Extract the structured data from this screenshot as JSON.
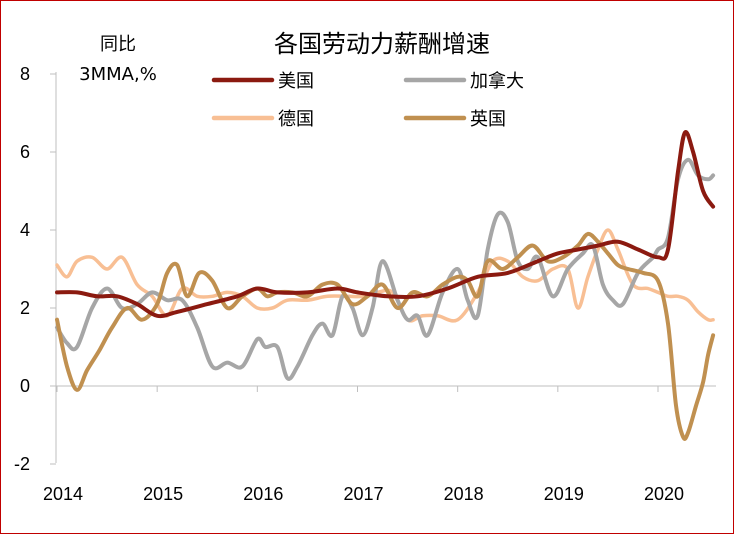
{
  "chart_data": {
    "type": "line",
    "title": "各国劳动力薪酬增速",
    "ylabel_line1": "同比",
    "ylabel_line2": "3MMA,%",
    "ylim": [
      -2,
      8
    ],
    "yticks": [
      "8",
      "6",
      "4",
      "2",
      "0",
      "-2"
    ],
    "xlim": [
      2014,
      2020.55
    ],
    "xticks": [
      "2014",
      "2015",
      "2016",
      "2017",
      "2018",
      "2019",
      "2020"
    ],
    "legend_position": "top",
    "series": [
      {
        "name": "美国",
        "color": "#8b1a10",
        "width": 4,
        "x": [
          2014.0,
          2014.2,
          2014.4,
          2014.6,
          2014.8,
          2015.0,
          2015.2,
          2015.5,
          2015.8,
          2016.0,
          2016.2,
          2016.5,
          2016.8,
          2017.0,
          2017.3,
          2017.6,
          2017.9,
          2018.2,
          2018.5,
          2018.8,
          2019.0,
          2019.2,
          2019.4,
          2019.6,
          2019.8,
          2020.0,
          2020.1,
          2020.2,
          2020.27,
          2020.35,
          2020.45,
          2020.55
        ],
        "y": [
          2.4,
          2.4,
          2.3,
          2.3,
          2.1,
          1.8,
          1.9,
          2.1,
          2.3,
          2.5,
          2.4,
          2.4,
          2.5,
          2.4,
          2.3,
          2.3,
          2.5,
          2.8,
          2.9,
          3.2,
          3.4,
          3.5,
          3.6,
          3.7,
          3.5,
          3.3,
          3.5,
          5.5,
          6.5,
          6.0,
          5.0,
          4.6
        ]
      },
      {
        "name": "加拿大",
        "color": "#a6a6a6",
        "width": 4,
        "x": [
          2014.0,
          2014.1,
          2014.2,
          2014.35,
          2014.5,
          2014.65,
          2014.8,
          2014.95,
          2015.1,
          2015.25,
          2015.4,
          2015.55,
          2015.7,
          2015.85,
          2016.0,
          2016.08,
          2016.2,
          2016.3,
          2016.4,
          2016.55,
          2016.65,
          2016.75,
          2016.85,
          2016.95,
          2017.05,
          2017.15,
          2017.25,
          2017.4,
          2017.5,
          2017.6,
          2017.7,
          2017.85,
          2018.0,
          2018.1,
          2018.2,
          2018.3,
          2018.4,
          2018.5,
          2018.6,
          2018.7,
          2018.8,
          2018.95,
          2019.1,
          2019.25,
          2019.35,
          2019.45,
          2019.55,
          2019.65,
          2019.8,
          2019.95,
          2020.0,
          2020.1,
          2020.2,
          2020.3,
          2020.4,
          2020.5,
          2020.55
        ],
        "y": [
          1.5,
          1.1,
          1.0,
          2.0,
          2.5,
          2.0,
          2.1,
          2.4,
          2.2,
          2.2,
          1.5,
          0.5,
          0.6,
          0.5,
          1.2,
          1.0,
          1.0,
          0.2,
          0.5,
          1.3,
          1.6,
          1.3,
          2.3,
          2.0,
          1.3,
          2.0,
          3.2,
          2.2,
          1.7,
          1.8,
          1.3,
          2.4,
          3.0,
          2.2,
          1.8,
          3.5,
          4.4,
          4.2,
          3.2,
          3.0,
          3.3,
          2.3,
          3.0,
          3.4,
          3.6,
          2.6,
          2.2,
          2.1,
          2.9,
          3.3,
          3.5,
          3.8,
          5.3,
          5.8,
          5.4,
          5.3,
          5.4
        ]
      },
      {
        "name": "德国",
        "color": "#f8bf94",
        "width": 3.5,
        "x": [
          2014.0,
          2014.1,
          2014.2,
          2014.35,
          2014.5,
          2014.65,
          2014.8,
          2014.95,
          2015.1,
          2015.25,
          2015.4,
          2015.55,
          2015.7,
          2015.85,
          2016.0,
          2016.15,
          2016.3,
          2016.5,
          2016.7,
          2016.9,
          2017.05,
          2017.2,
          2017.35,
          2017.5,
          2017.65,
          2017.8,
          2018.0,
          2018.2,
          2018.35,
          2018.5,
          2018.65,
          2018.8,
          2018.95,
          2019.1,
          2019.2,
          2019.3,
          2019.4,
          2019.5,
          2019.6,
          2019.75,
          2019.9,
          2020.0,
          2020.1,
          2020.2,
          2020.3,
          2020.4,
          2020.5,
          2020.55
        ],
        "y": [
          3.1,
          2.8,
          3.2,
          3.3,
          3.0,
          3.3,
          2.6,
          2.3,
          1.8,
          2.5,
          2.3,
          2.3,
          2.4,
          2.3,
          2.0,
          2.0,
          2.2,
          2.2,
          2.3,
          2.3,
          2.3,
          2.4,
          2.4,
          1.7,
          1.8,
          1.8,
          1.7,
          2.4,
          3.2,
          3.2,
          2.8,
          2.7,
          3.0,
          3.0,
          2.0,
          2.8,
          3.5,
          4.0,
          3.5,
          2.6,
          2.5,
          2.4,
          2.3,
          2.3,
          2.2,
          1.9,
          1.7,
          1.7
        ]
      },
      {
        "name": "英国",
        "color": "#c09050",
        "width": 4,
        "x": [
          2014.0,
          2014.1,
          2014.2,
          2014.3,
          2014.42,
          2014.55,
          2014.7,
          2014.85,
          2015.0,
          2015.1,
          2015.2,
          2015.3,
          2015.42,
          2015.55,
          2015.7,
          2015.85,
          2016.0,
          2016.1,
          2016.2,
          2016.35,
          2016.5,
          2016.65,
          2016.8,
          2016.95,
          2017.1,
          2017.25,
          2017.4,
          2017.55,
          2017.7,
          2017.85,
          2018.0,
          2018.1,
          2018.2,
          2018.3,
          2018.45,
          2018.6,
          2018.75,
          2018.9,
          2019.05,
          2019.2,
          2019.3,
          2019.4,
          2019.5,
          2019.6,
          2019.7,
          2019.85,
          2020.0,
          2020.1,
          2020.18,
          2020.25,
          2020.3,
          2020.38,
          2020.45,
          2020.5,
          2020.55
        ],
        "y": [
          1.7,
          0.5,
          -0.1,
          0.4,
          0.9,
          1.5,
          2.0,
          1.7,
          2.1,
          2.9,
          3.1,
          2.3,
          2.9,
          2.7,
          2.0,
          2.3,
          2.5,
          2.3,
          2.4,
          2.4,
          2.3,
          2.6,
          2.6,
          2.1,
          2.3,
          2.6,
          2.0,
          2.4,
          2.3,
          2.6,
          2.8,
          2.7,
          2.3,
          3.2,
          3.0,
          3.3,
          3.6,
          3.2,
          3.3,
          3.6,
          3.9,
          3.7,
          3.4,
          3.1,
          3.0,
          2.9,
          2.7,
          1.6,
          -0.5,
          -1.3,
          -1.2,
          -0.5,
          0.1,
          0.8,
          1.3
        ]
      }
    ]
  }
}
